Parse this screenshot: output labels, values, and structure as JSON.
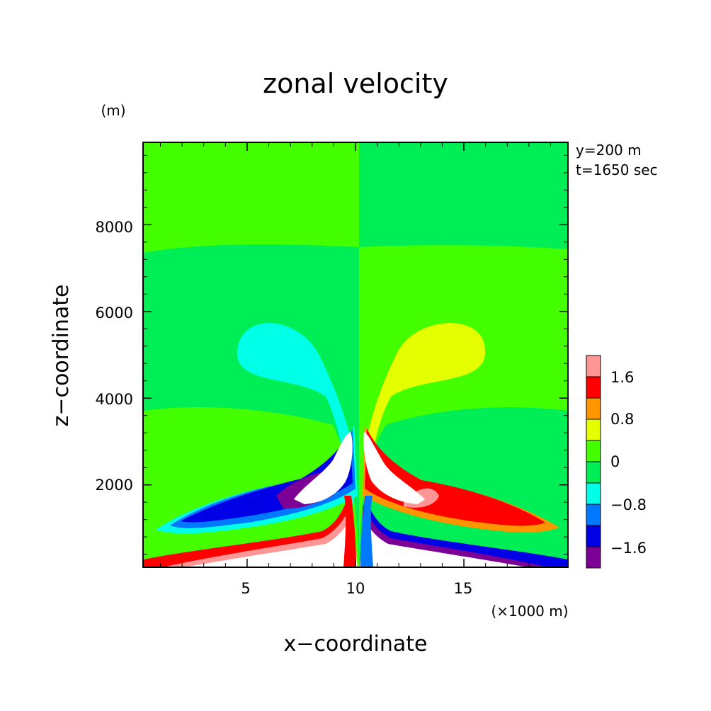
{
  "chart_data": {
    "type": "contour",
    "title": "zonal velocity",
    "xlabel": "x−coordinate",
    "ylabel": "z−coordinate",
    "x_unit": "(×1000 m)",
    "y_unit": "(m)",
    "annotations": [
      "y=200 m",
      "t=1650 sec"
    ],
    "xlim": [
      0.2,
      19.8
    ],
    "ylim": [
      100,
      9900
    ],
    "x_ticks": [
      {
        "value": 5,
        "label": "5"
      },
      {
        "value": 10,
        "label": "10"
      },
      {
        "value": 15,
        "label": "15"
      }
    ],
    "y_ticks": [
      {
        "value": 2000,
        "label": "2000"
      },
      {
        "value": 4000,
        "label": "4000"
      },
      {
        "value": 6000,
        "label": "6000"
      },
      {
        "value": 8000,
        "label": "8000"
      }
    ],
    "grid": false,
    "colorbar": {
      "levels": [
        -2.0,
        -1.6,
        -1.2,
        -0.8,
        -0.4,
        0,
        0.4,
        0.8,
        1.2,
        1.6,
        2.0
      ],
      "colors": [
        "#7d0096",
        "#0000e6",
        "#0078ff",
        "#00ffe6",
        "#00ee55",
        "#44ff00",
        "#e6ff00",
        "#ff9600",
        "#ff0000",
        "#ff9696"
      ],
      "labels": [
        {
          "value": -1.6,
          "label": "−1.6"
        },
        {
          "value": -0.8,
          "label": "−0.8"
        },
        {
          "value": 0,
          "label": "0"
        },
        {
          "value": 0.8,
          "label": "0.8"
        },
        {
          "value": 1.6,
          "label": "1.6"
        }
      ],
      "over_color": "#ffffff",
      "under_color": "#ffffff"
    },
    "features": [
      {
        "name": "negative-anvil",
        "x_center": 6.8,
        "z_center": 5000,
        "value_range": [
          -0.8,
          -0.4
        ]
      },
      {
        "name": "positive-anvil",
        "x_center": 13.2,
        "z_center": 5000,
        "value_range": [
          0.4,
          0.8
        ]
      },
      {
        "name": "left-outflow-jet",
        "x_center": 5.0,
        "z_center": 1200,
        "value_range": [
          -1.6,
          -1.2
        ]
      },
      {
        "name": "right-outflow-jet",
        "x_center": 15.0,
        "z_center": 1200,
        "value_range": [
          1.2,
          1.6
        ]
      }
    ]
  }
}
